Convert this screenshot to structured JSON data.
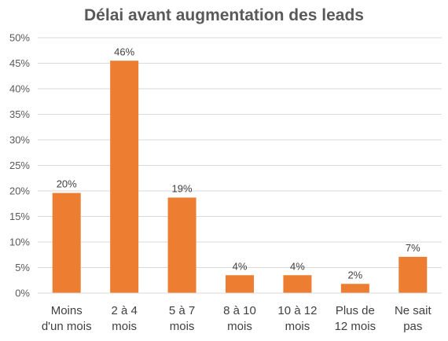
{
  "chart_data": {
    "type": "bar",
    "title": "Délai avant augmentation des leads",
    "xlabel": "",
    "ylabel": "",
    "categories": [
      [
        "Moins",
        "d'un mois"
      ],
      [
        "2 à 4",
        "mois"
      ],
      [
        "5 à 7",
        "mois"
      ],
      [
        "8 à 10",
        "mois"
      ],
      [
        "10 à 12",
        "mois"
      ],
      [
        "Plus de",
        "12 mois"
      ],
      [
        "Ne sait",
        "pas"
      ]
    ],
    "values": [
      0.196,
      0.455,
      0.187,
      0.035,
      0.035,
      0.018,
      0.071
    ],
    "data_labels": [
      "20%",
      "46%",
      "19%",
      "4%",
      "4%",
      "2%",
      "7%"
    ],
    "ylim": [
      0,
      0.5
    ],
    "yticks": [
      0,
      0.05,
      0.1,
      0.15,
      0.2,
      0.25,
      0.3,
      0.35,
      0.4,
      0.45,
      0.5
    ],
    "ytick_labels": [
      "0%",
      "5%",
      "10%",
      "15%",
      "20%",
      "25%",
      "30%",
      "35%",
      "40%",
      "45%",
      "50%"
    ],
    "grid": true,
    "bar_color": "#ED7D31",
    "grid_color": "#D9D9D9"
  }
}
